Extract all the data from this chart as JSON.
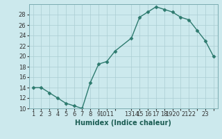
{
  "x_vals": [
    1,
    2,
    3,
    4,
    5,
    6,
    7,
    8,
    9,
    10,
    11,
    13,
    14,
    15,
    16,
    17,
    18,
    19,
    20,
    21,
    22,
    23
  ],
  "y_vals": [
    14,
    14,
    13,
    12,
    11,
    10.5,
    10,
    15,
    18.5,
    19,
    21,
    23.5,
    27.5,
    28.5,
    29.5,
    29,
    28.5,
    27.5,
    27,
    25,
    23,
    20
  ],
  "ylim": [
    10,
    30
  ],
  "yticks": [
    10,
    12,
    14,
    16,
    18,
    20,
    22,
    24,
    26,
    28
  ],
  "xlim_min": 0.5,
  "xlim_max": 23.5,
  "xtick_positions": [
    1,
    2,
    3,
    4,
    5,
    6,
    7,
    8,
    9,
    10,
    11,
    13,
    14,
    15,
    16,
    17,
    18,
    19,
    20,
    21,
    22,
    23
  ],
  "xtick_labels": [
    "1",
    "2",
    "3",
    "4",
    "5",
    "6",
    "7",
    "8",
    "9",
    "1011",
    "",
    "1314",
    "15",
    "16",
    "17",
    "18",
    "1920",
    "",
    "2122",
    "",
    "23",
    ""
  ],
  "xlabel": "Humidex (Indice chaleur)",
  "line_color": "#2d7a6e",
  "marker": "D",
  "marker_size": 2.5,
  "bg_color": "#cce9ed",
  "grid_color": "#aacdd2",
  "xlabel_color": "#1a5c52",
  "xlabel_fontsize": 7,
  "tick_fontsize": 6,
  "linewidth": 1.0
}
